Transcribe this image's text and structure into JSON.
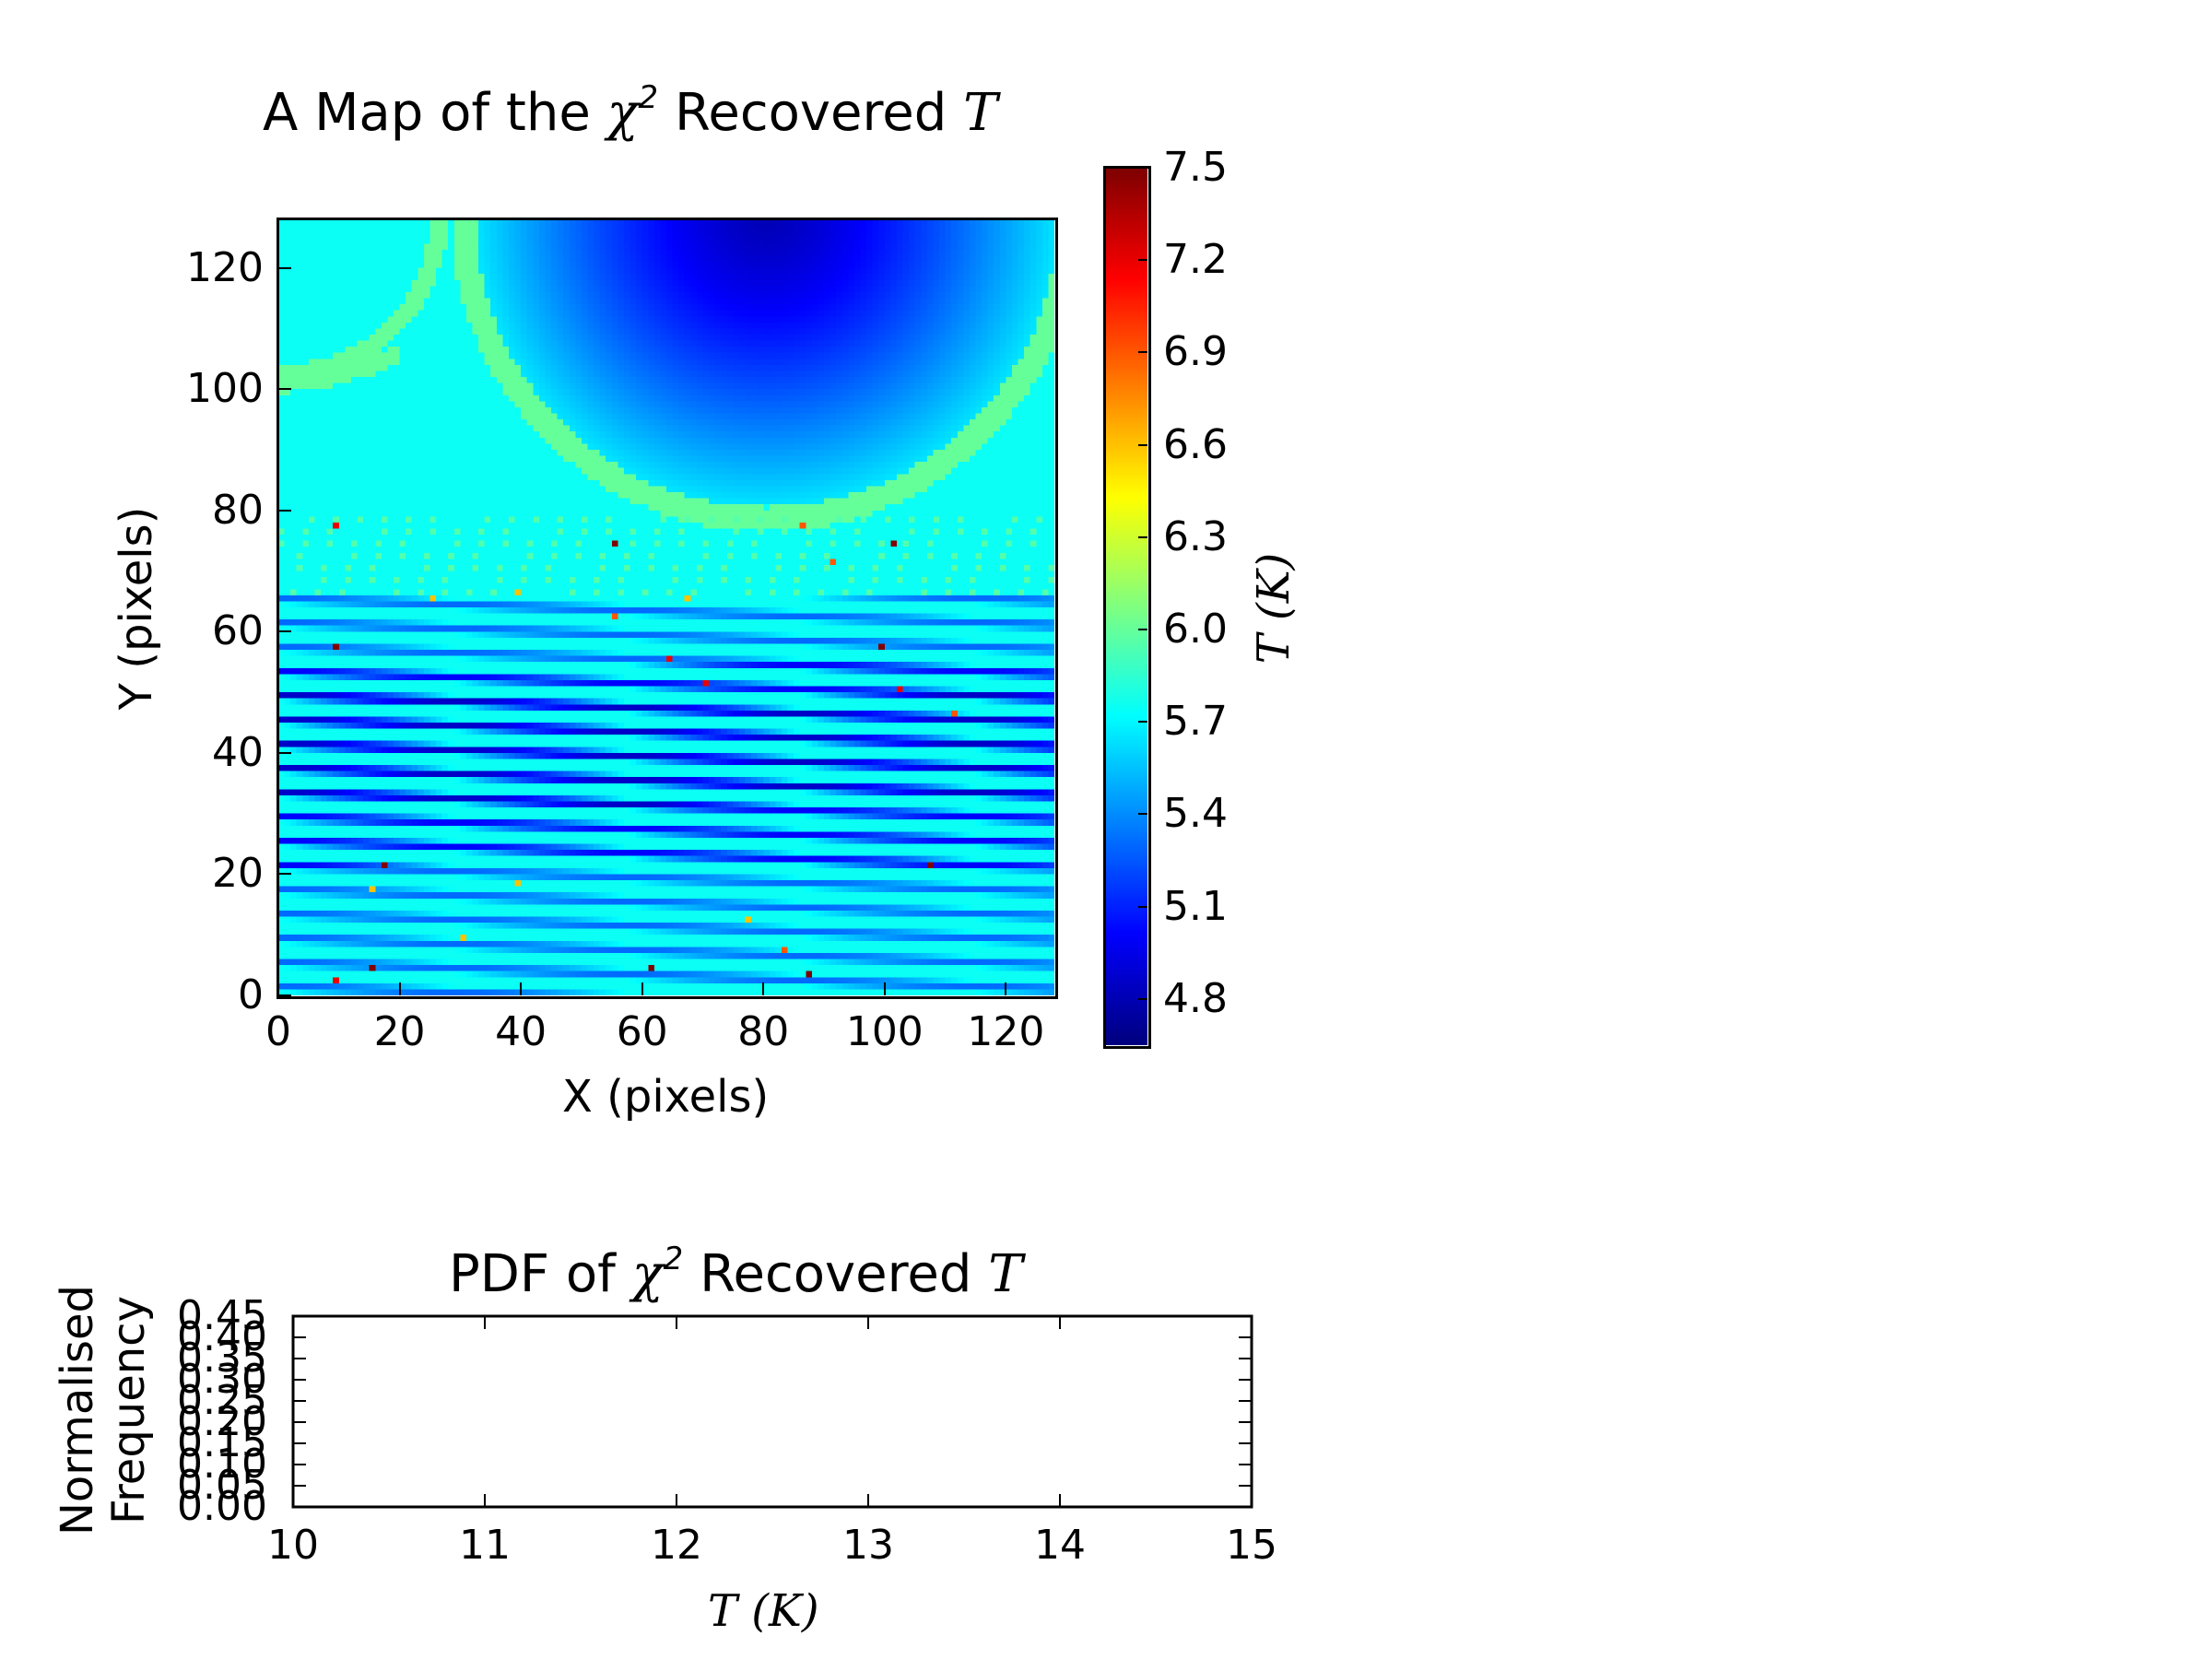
{
  "chart_data": [
    {
      "type": "heatmap",
      "title_prefix": "A Map of the",
      "title_chi": "χ",
      "title_chi_exp": "2",
      "title_suffix": "Recovered",
      "title_var": "T",
      "xlabel": "X (pixels)",
      "ylabel": "Y (pixels)",
      "xlim": [
        0,
        128
      ],
      "ylim": [
        0,
        128
      ],
      "xticks": [
        0,
        20,
        40,
        60,
        80,
        100,
        120
      ],
      "yticks": [
        0,
        20,
        40,
        60,
        80,
        100,
        120
      ],
      "colorbar": {
        "label": "T (K)",
        "range": [
          4.65,
          7.5
        ],
        "ticks": [
          "7.5",
          "7.2",
          "6.9",
          "6.6",
          "6.3",
          "6.0",
          "5.7",
          "5.4",
          "5.1",
          "4.8"
        ],
        "colormap": "jet"
      },
      "description_values": {
        "background_T": 5.75,
        "top_dome_center_x": 80,
        "top_dome_min_T": 4.8,
        "stripe_region_y": [
          0,
          66
        ],
        "stripe_min_T": 5.0
      },
      "outlier_points": [
        {
          "x": 9,
          "y": 77,
          "T": 7.2
        },
        {
          "x": 55,
          "y": 74,
          "T": 7.5
        },
        {
          "x": 101,
          "y": 74,
          "T": 7.5
        },
        {
          "x": 9,
          "y": 57,
          "T": 7.5
        },
        {
          "x": 99,
          "y": 57,
          "T": 7.5
        },
        {
          "x": 64,
          "y": 55,
          "T": 7.2
        },
        {
          "x": 70,
          "y": 51,
          "T": 7.2
        },
        {
          "x": 102,
          "y": 50,
          "T": 7.2
        },
        {
          "x": 17,
          "y": 21,
          "T": 7.5
        },
        {
          "x": 107,
          "y": 21,
          "T": 7.5
        },
        {
          "x": 15,
          "y": 4,
          "T": 7.5
        },
        {
          "x": 61,
          "y": 4,
          "T": 7.5
        },
        {
          "x": 87,
          "y": 3,
          "T": 7.5
        },
        {
          "x": 9,
          "y": 2,
          "T": 7.2
        },
        {
          "x": 55,
          "y": 62,
          "T": 6.9
        },
        {
          "x": 91,
          "y": 71,
          "T": 6.9
        },
        {
          "x": 86,
          "y": 77,
          "T": 6.9
        },
        {
          "x": 39,
          "y": 66,
          "T": 6.6
        },
        {
          "x": 83,
          "y": 7,
          "T": 6.9
        },
        {
          "x": 39,
          "y": 18,
          "T": 6.6
        },
        {
          "x": 77,
          "y": 12,
          "T": 6.6
        },
        {
          "x": 15,
          "y": 17,
          "T": 6.6
        },
        {
          "x": 30,
          "y": 9,
          "T": 6.6
        },
        {
          "x": 111,
          "y": 46,
          "T": 6.9
        },
        {
          "x": 25,
          "y": 65,
          "T": 6.6
        },
        {
          "x": 67,
          "y": 65,
          "T": 6.6
        }
      ]
    },
    {
      "type": "bar",
      "title_prefix": "PDF of",
      "title_chi": "χ",
      "title_chi_exp": "2",
      "title_suffix": "Recovered",
      "title_var": "T",
      "xlabel": "T (K)",
      "ylabel_line1": "Normalised",
      "ylabel_line2": "Frequency",
      "xlim": [
        10,
        15
      ],
      "ylim": [
        0,
        0.45
      ],
      "xticks": [
        "10",
        "11",
        "12",
        "13",
        "14",
        "15"
      ],
      "yticks": [
        "0.00",
        "0.05",
        "0.10",
        "0.15",
        "0.20",
        "0.25",
        "0.30",
        "0.35",
        "0.40",
        "0.45"
      ],
      "values": []
    }
  ]
}
